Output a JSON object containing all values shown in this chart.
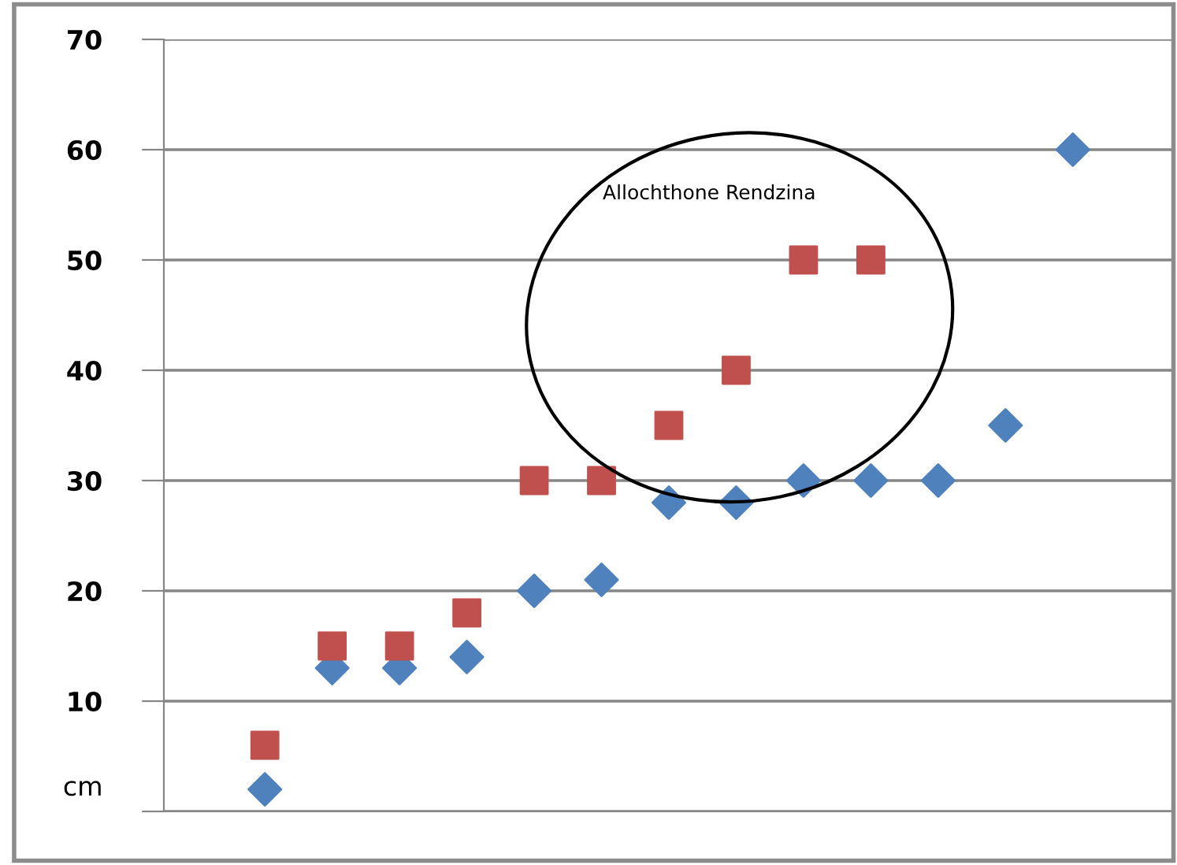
{
  "chart_data": {
    "type": "scatter",
    "ylabel": "cm",
    "categories": [
      null,
      null,
      null,
      null,
      null,
      null,
      null,
      null,
      null,
      null,
      null,
      null,
      null,
      null,
      null
    ],
    "series": [
      {
        "color": "#4f81bd",
        "marker": "diamond",
        "values": [
          null,
          2,
          13,
          13,
          14,
          20,
          21,
          28,
          28,
          30,
          30,
          30,
          35,
          60,
          null
        ]
      },
      {
        "color": "#c0504d",
        "marker": "square",
        "values": [
          null,
          6,
          15,
          15,
          18,
          30,
          30,
          35,
          40,
          50,
          50,
          null,
          null,
          null,
          null
        ]
      }
    ],
    "ylim": [
      0,
      70
    ],
    "yticks": [
      {
        "value": 0,
        "label": null
      },
      10,
      20,
      30,
      40,
      50,
      60,
      70
    ],
    "grid": "y",
    "legend": false,
    "annotations": [
      "Allochthone Rendzina"
    ]
  }
}
